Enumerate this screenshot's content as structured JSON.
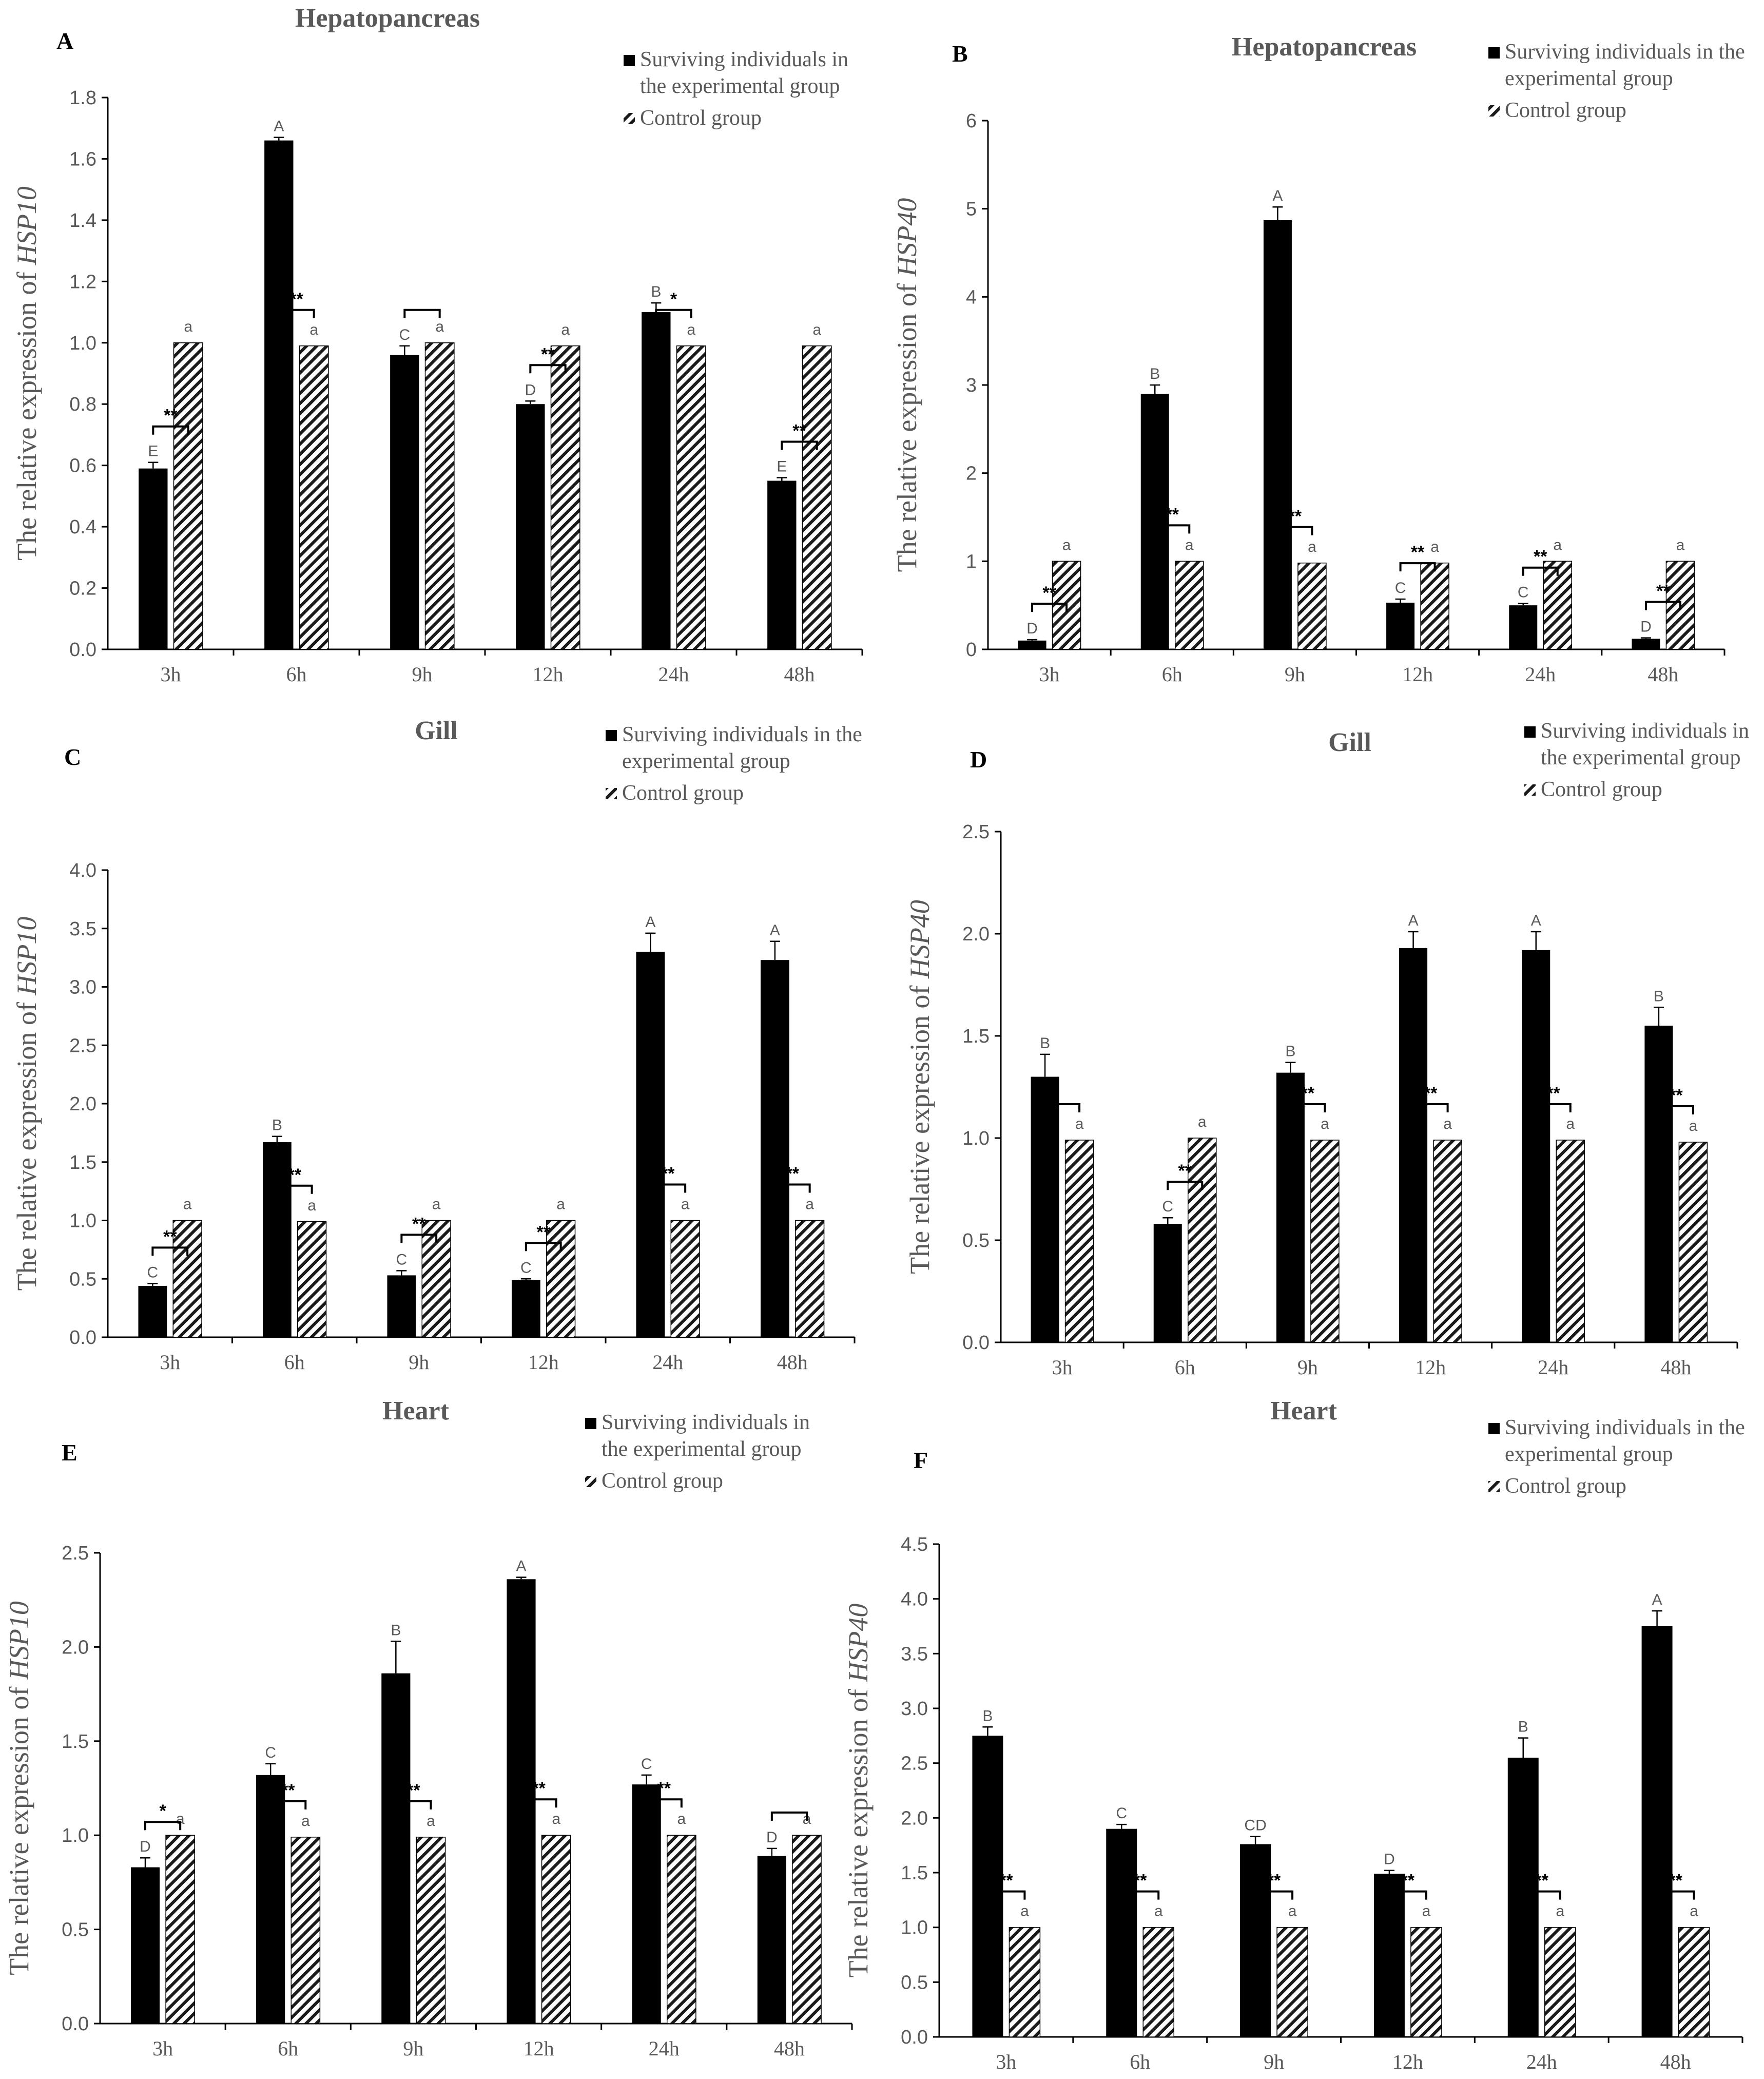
{
  "legend": {
    "experimental_lines": [
      "Surviving individuals in the",
      "experimental group"
    ],
    "experimental_lines_alt": [
      "Surviving individuals in",
      "the experimental group"
    ],
    "control": "Control group"
  },
  "chart_data": [
    {
      "panel": "A",
      "type": "bar",
      "title": "Hepatopancreas",
      "ylabel_prefix": "The relative expression of ",
      "ylabel_gene": "HSP10",
      "categories": [
        "3h",
        "6h",
        "9h",
        "12h",
        "24h",
        "48h"
      ],
      "ylim": [
        0,
        1.8
      ],
      "yticks": [
        "0.0",
        "0.2",
        "0.4",
        "0.6",
        "0.8",
        "1.0",
        "1.2",
        "1.4",
        "1.6",
        "1.8"
      ],
      "legend_style": "alt",
      "series": [
        {
          "name": "experimental",
          "values": [
            0.59,
            1.66,
            0.96,
            0.8,
            1.1,
            0.55
          ],
          "errors": [
            0.02,
            0.01,
            0.03,
            0.01,
            0.03,
            0.01
          ],
          "letters": [
            "E",
            "A",
            "C",
            "D",
            "B",
            "E"
          ]
        },
        {
          "name": "control",
          "values": [
            1.0,
            0.99,
            1.0,
            0.99,
            0.99,
            0.99
          ],
          "errors": [
            0,
            0,
            0,
            0,
            0,
            0
          ],
          "letters": [
            "a",
            "a",
            "a",
            "a",
            "a",
            "a"
          ]
        }
      ],
      "significance": [
        "**",
        "**",
        "",
        "**",
        "*",
        "**"
      ]
    },
    {
      "panel": "B",
      "type": "bar",
      "title": "Hepatopancreas",
      "ylabel_prefix": "The relative expression of ",
      "ylabel_gene": "HSP40",
      "categories": [
        "3h",
        "6h",
        "9h",
        "12h",
        "24h",
        "48h"
      ],
      "ylim": [
        0,
        6
      ],
      "yticks": [
        "0",
        "1",
        "2",
        "3",
        "4",
        "5",
        "6"
      ],
      "legend_style": "main",
      "series": [
        {
          "name": "experimental",
          "values": [
            0.1,
            2.9,
            4.87,
            0.53,
            0.5,
            0.12
          ],
          "errors": [
            0.01,
            0.1,
            0.15,
            0.04,
            0.02,
            0.01
          ],
          "letters": [
            "D",
            "B",
            "A",
            "C",
            "C",
            "D"
          ]
        },
        {
          "name": "control",
          "values": [
            1.0,
            1.0,
            0.98,
            0.98,
            1.0,
            1.0
          ],
          "errors": [
            0,
            0,
            0,
            0,
            0,
            0
          ],
          "letters": [
            "a",
            "a",
            "a",
            "a",
            "a",
            "a"
          ]
        }
      ],
      "significance": [
        "**",
        "**",
        "**",
        "**",
        "**",
        "**"
      ]
    },
    {
      "panel": "C",
      "type": "bar",
      "title": "Gill",
      "ylabel_prefix": "The relative expression of ",
      "ylabel_gene": "HSP10",
      "categories": [
        "3h",
        "6h",
        "9h",
        "12h",
        "24h",
        "48h"
      ],
      "ylim": [
        0,
        4
      ],
      "yticks": [
        "0.0",
        "0.5",
        "1.0",
        "1.5",
        "2.0",
        "2.5",
        "3.0",
        "3.5",
        "4.0"
      ],
      "legend_style": "main",
      "series": [
        {
          "name": "experimental",
          "values": [
            0.44,
            1.67,
            0.53,
            0.49,
            3.3,
            3.23
          ],
          "errors": [
            0.02,
            0.05,
            0.04,
            0.01,
            0.16,
            0.16
          ],
          "letters": [
            "C",
            "B",
            "C",
            "C",
            "A",
            "A"
          ]
        },
        {
          "name": "control",
          "values": [
            1.0,
            0.99,
            1.0,
            1.0,
            1.0,
            1.0
          ],
          "errors": [
            0,
            0,
            0,
            0,
            0,
            0
          ],
          "letters": [
            "a",
            "a",
            "a",
            "a",
            "a",
            "a"
          ]
        }
      ],
      "significance": [
        "**",
        "**",
        "**",
        "**",
        "**",
        "**"
      ]
    },
    {
      "panel": "D",
      "type": "bar",
      "title": "Gill",
      "ylabel_prefix": "The relative expression of ",
      "ylabel_gene": "HSP40",
      "categories": [
        "3h",
        "6h",
        "9h",
        "12h",
        "24h",
        "48h"
      ],
      "ylim": [
        0,
        2.5
      ],
      "yticks": [
        "0.0",
        "0.5",
        "1.0",
        "1.5",
        "2.0",
        "2.5"
      ],
      "legend_style": "alt",
      "series": [
        {
          "name": "experimental",
          "values": [
            1.3,
            0.58,
            1.32,
            1.93,
            1.92,
            1.55
          ],
          "errors": [
            0.11,
            0.03,
            0.05,
            0.08,
            0.09,
            0.09
          ],
          "letters": [
            "B",
            "C",
            "B",
            "A",
            "A",
            "B"
          ]
        },
        {
          "name": "control",
          "values": [
            0.99,
            1.0,
            0.99,
            0.99,
            0.99,
            0.98
          ],
          "errors": [
            0,
            0,
            0,
            0,
            0,
            0
          ],
          "letters": [
            "a",
            "a",
            "a",
            "a",
            "a",
            "a"
          ]
        }
      ],
      "significance": [
        "",
        "**",
        "**",
        "**",
        "**",
        "**"
      ]
    },
    {
      "panel": "E",
      "type": "bar",
      "title": "Heart",
      "ylabel_prefix": "The relative expression of ",
      "ylabel_gene": "HSP10",
      "categories": [
        "3h",
        "6h",
        "9h",
        "12h",
        "24h",
        "48h"
      ],
      "ylim": [
        0,
        2.5
      ],
      "yticks": [
        "0.0",
        "0.5",
        "1.0",
        "1.5",
        "2.0",
        "2.5"
      ],
      "legend_style": "alt",
      "series": [
        {
          "name": "experimental",
          "values": [
            0.83,
            1.32,
            1.86,
            2.36,
            1.27,
            0.89
          ],
          "errors": [
            0.05,
            0.06,
            0.17,
            0.01,
            0.05,
            0.04
          ],
          "letters": [
            "D",
            "C",
            "B",
            "A",
            "C",
            "D"
          ]
        },
        {
          "name": "control",
          "values": [
            1.0,
            0.99,
            0.99,
            1.0,
            1.0,
            1.0
          ],
          "errors": [
            0,
            0,
            0,
            0,
            0,
            0
          ],
          "letters": [
            "a",
            "a",
            "a",
            "a",
            "a",
            "a"
          ]
        }
      ],
      "significance": [
        "*",
        "**",
        "**",
        "**",
        "**",
        ""
      ]
    },
    {
      "panel": "F",
      "type": "bar",
      "title": "Heart",
      "ylabel_prefix": "The relative expression of ",
      "ylabel_gene": "HSP40",
      "categories": [
        "3h",
        "6h",
        "9h",
        "12h",
        "24h",
        "48h"
      ],
      "ylim": [
        0,
        4.5
      ],
      "yticks": [
        "0.0",
        "0.5",
        "1.0",
        "1.5",
        "2.0",
        "2.5",
        "3.0",
        "3.5",
        "4.0",
        "4.5"
      ],
      "legend_style": "main",
      "series": [
        {
          "name": "experimental",
          "values": [
            2.75,
            1.9,
            1.76,
            1.49,
            2.55,
            3.75
          ],
          "errors": [
            0.08,
            0.04,
            0.07,
            0.03,
            0.18,
            0.14
          ],
          "letters": [
            "B",
            "C",
            "CD",
            "D",
            "B",
            "A"
          ]
        },
        {
          "name": "control",
          "values": [
            1.0,
            1.0,
            1.0,
            1.0,
            1.0,
            1.0
          ],
          "errors": [
            0,
            0,
            0,
            0,
            0,
            0
          ],
          "letters": [
            "a",
            "a",
            "a",
            "a",
            "a",
            "a"
          ]
        }
      ],
      "significance": [
        "**",
        "**",
        "**",
        "**",
        "**",
        "**"
      ]
    }
  ]
}
